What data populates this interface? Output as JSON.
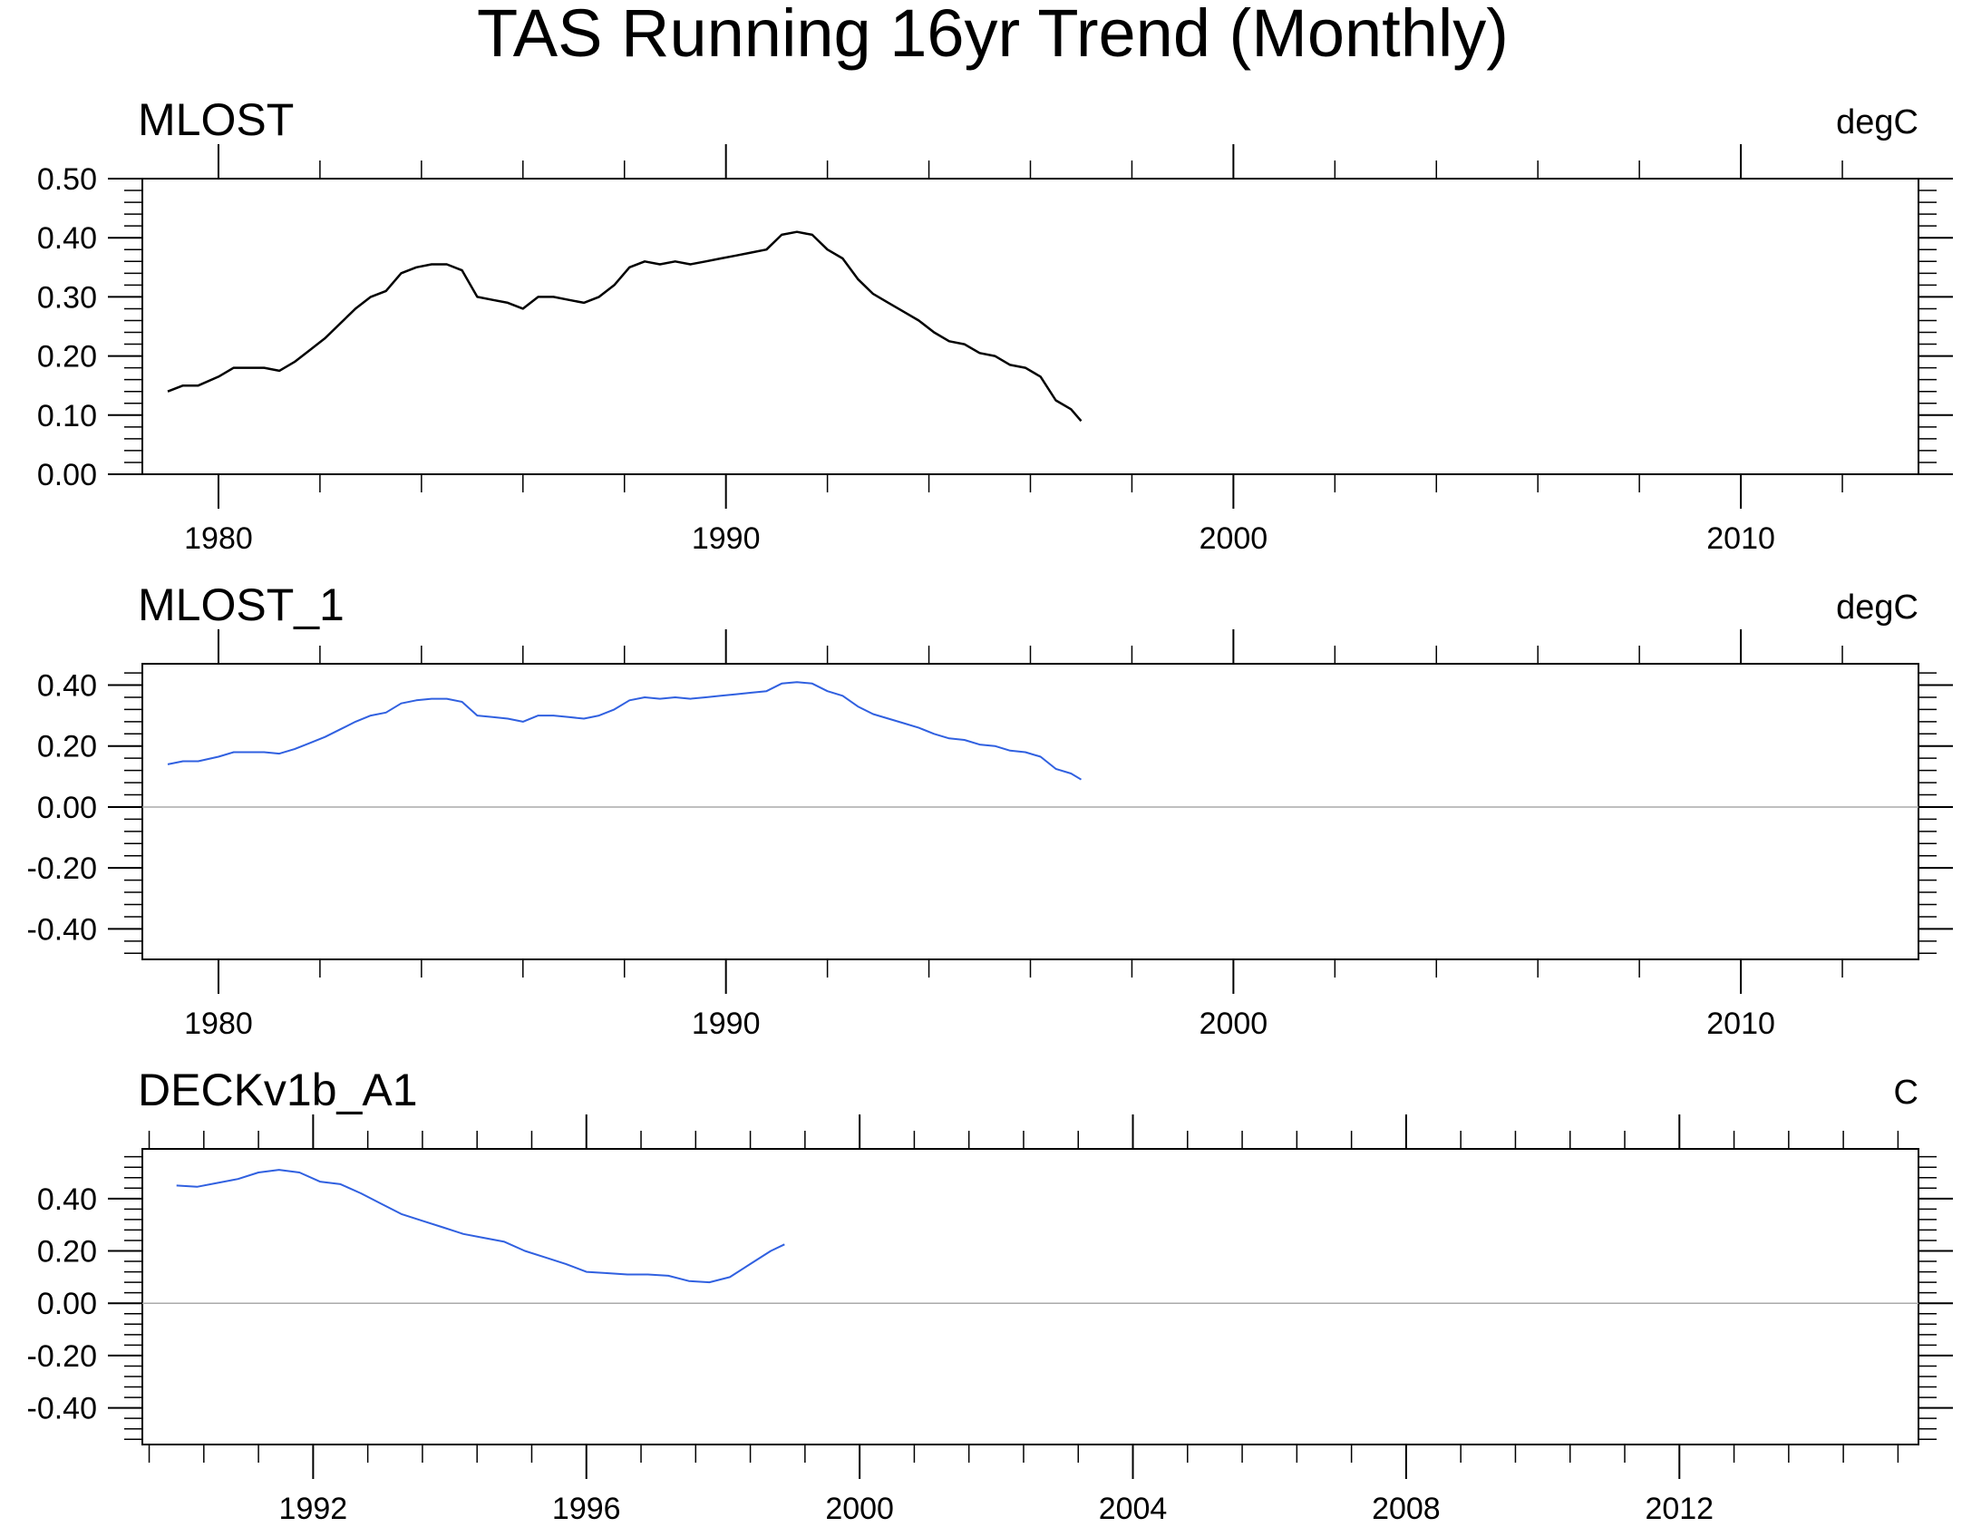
{
  "title": "TAS Running 16yr Trend (Monthly)",
  "colors": {
    "axis": "#000000",
    "series_black": "#000000",
    "series_blue": "#3060e0",
    "zero_line": "#aaaaaa"
  },
  "chart_data": [
    {
      "type": "line",
      "title": "MLOST",
      "units": "degC",
      "xlim": [
        1978.5,
        2013.5
      ],
      "ylim": [
        0,
        0.5
      ],
      "x_ticks": [
        1980,
        1990,
        2000,
        2010
      ],
      "x_tick_labels": [
        "1980",
        "1990",
        "2000",
        "2010"
      ],
      "y_ticks": [
        0,
        0.1,
        0.2,
        0.3,
        0.4,
        0.5
      ],
      "y_tick_labels": [
        "0.00",
        "0.10",
        "0.20",
        "0.30",
        "0.40",
        "0.50"
      ],
      "zero_line": false,
      "series": [
        {
          "color": "#000000",
          "x": [
            1979.0,
            1979.3,
            1979.6,
            1980.0,
            1980.3,
            1980.6,
            1980.9,
            1981.2,
            1981.5,
            1981.8,
            1982.1,
            1982.4,
            1982.7,
            1983.0,
            1983.3,
            1983.6,
            1983.9,
            1984.2,
            1984.5,
            1984.8,
            1985.1,
            1985.4,
            1985.7,
            1986.0,
            1986.3,
            1986.6,
            1986.9,
            1987.2,
            1987.5,
            1987.8,
            1988.1,
            1988.4,
            1988.7,
            1989.0,
            1989.3,
            1989.6,
            1989.9,
            1990.2,
            1990.5,
            1990.8,
            1991.1,
            1991.4,
            1991.7,
            1992.0,
            1992.3,
            1992.6,
            1992.9,
            1993.2,
            1993.5,
            1993.8,
            1994.1,
            1994.4,
            1994.7,
            1995.0,
            1995.3,
            1995.6,
            1995.9,
            1996.2,
            1996.5,
            1996.8,
            1997.0
          ],
          "values": [
            0.14,
            0.15,
            0.15,
            0.165,
            0.18,
            0.18,
            0.18,
            0.175,
            0.19,
            0.21,
            0.23,
            0.255,
            0.28,
            0.3,
            0.31,
            0.34,
            0.35,
            0.355,
            0.355,
            0.345,
            0.3,
            0.295,
            0.29,
            0.28,
            0.3,
            0.3,
            0.295,
            0.29,
            0.3,
            0.32,
            0.35,
            0.36,
            0.355,
            0.36,
            0.355,
            0.36,
            0.365,
            0.37,
            0.375,
            0.38,
            0.405,
            0.41,
            0.405,
            0.38,
            0.365,
            0.33,
            0.305,
            0.29,
            0.275,
            0.26,
            0.24,
            0.225,
            0.22,
            0.205,
            0.2,
            0.185,
            0.18,
            0.165,
            0.125,
            0.11,
            0.09
          ]
        }
      ]
    },
    {
      "type": "line",
      "title": "MLOST_1",
      "units": "degC",
      "xlim": [
        1978.5,
        2013.5
      ],
      "ylim": [
        -0.5,
        0.47
      ],
      "x_ticks": [
        1980,
        1990,
        2000,
        2010
      ],
      "x_tick_labels": [
        "1980",
        "1990",
        "2000",
        "2010"
      ],
      "y_ticks": [
        -0.4,
        -0.2,
        0,
        0.2,
        0.4
      ],
      "y_tick_labels": [
        "-0.40",
        "-0.20",
        "0.00",
        "0.20",
        "0.40"
      ],
      "zero_line": true,
      "series": [
        {
          "color": "#3060e0",
          "x": [
            1979.0,
            1979.3,
            1979.6,
            1980.0,
            1980.3,
            1980.6,
            1980.9,
            1981.2,
            1981.5,
            1981.8,
            1982.1,
            1982.4,
            1982.7,
            1983.0,
            1983.3,
            1983.6,
            1983.9,
            1984.2,
            1984.5,
            1984.8,
            1985.1,
            1985.4,
            1985.7,
            1986.0,
            1986.3,
            1986.6,
            1986.9,
            1987.2,
            1987.5,
            1987.8,
            1988.1,
            1988.4,
            1988.7,
            1989.0,
            1989.3,
            1989.6,
            1989.9,
            1990.2,
            1990.5,
            1990.8,
            1991.1,
            1991.4,
            1991.7,
            1992.0,
            1992.3,
            1992.6,
            1992.9,
            1993.2,
            1993.5,
            1993.8,
            1994.1,
            1994.4,
            1994.7,
            1995.0,
            1995.3,
            1995.6,
            1995.9,
            1996.2,
            1996.5,
            1996.8,
            1997.0
          ],
          "values": [
            0.14,
            0.15,
            0.15,
            0.165,
            0.18,
            0.18,
            0.18,
            0.175,
            0.19,
            0.21,
            0.23,
            0.255,
            0.28,
            0.3,
            0.31,
            0.34,
            0.35,
            0.355,
            0.355,
            0.345,
            0.3,
            0.295,
            0.29,
            0.28,
            0.3,
            0.3,
            0.295,
            0.29,
            0.3,
            0.32,
            0.35,
            0.36,
            0.355,
            0.36,
            0.355,
            0.36,
            0.365,
            0.37,
            0.375,
            0.38,
            0.405,
            0.41,
            0.405,
            0.38,
            0.365,
            0.33,
            0.305,
            0.29,
            0.275,
            0.26,
            0.24,
            0.225,
            0.22,
            0.205,
            0.2,
            0.185,
            0.18,
            0.165,
            0.125,
            0.11,
            0.09
          ]
        }
      ]
    },
    {
      "type": "line",
      "title": "DECKv1b_A1",
      "units": "C",
      "xlim": [
        1989.5,
        2015.5
      ],
      "ylim": [
        -0.54,
        0.59
      ],
      "x_ticks": [
        1992,
        1996,
        2000,
        2004,
        2008,
        2012
      ],
      "x_tick_labels": [
        "1992",
        "1996",
        "2000",
        "2004",
        "2008",
        "2012"
      ],
      "y_ticks": [
        -0.4,
        -0.2,
        0,
        0.2,
        0.4
      ],
      "y_tick_labels": [
        "-0.40",
        "-0.20",
        "0.00",
        "0.20",
        "0.40"
      ],
      "zero_line": true,
      "series": [
        {
          "color": "#3060e0",
          "x": [
            1990.0,
            1990.3,
            1990.6,
            1990.9,
            1991.2,
            1991.5,
            1991.8,
            1992.1,
            1992.4,
            1992.7,
            1993.0,
            1993.3,
            1993.6,
            1993.9,
            1994.2,
            1994.5,
            1994.8,
            1995.1,
            1995.4,
            1995.7,
            1996.0,
            1996.3,
            1996.6,
            1996.9,
            1997.2,
            1997.5,
            1997.8,
            1998.1,
            1998.4,
            1998.7,
            1998.9
          ],
          "values": [
            0.45,
            0.445,
            0.46,
            0.475,
            0.5,
            0.51,
            0.5,
            0.465,
            0.455,
            0.42,
            0.38,
            0.34,
            0.315,
            0.29,
            0.265,
            0.25,
            0.235,
            0.2,
            0.175,
            0.15,
            0.12,
            0.115,
            0.11,
            0.11,
            0.105,
            0.085,
            0.08,
            0.1,
            0.15,
            0.2,
            0.225
          ]
        }
      ]
    }
  ]
}
